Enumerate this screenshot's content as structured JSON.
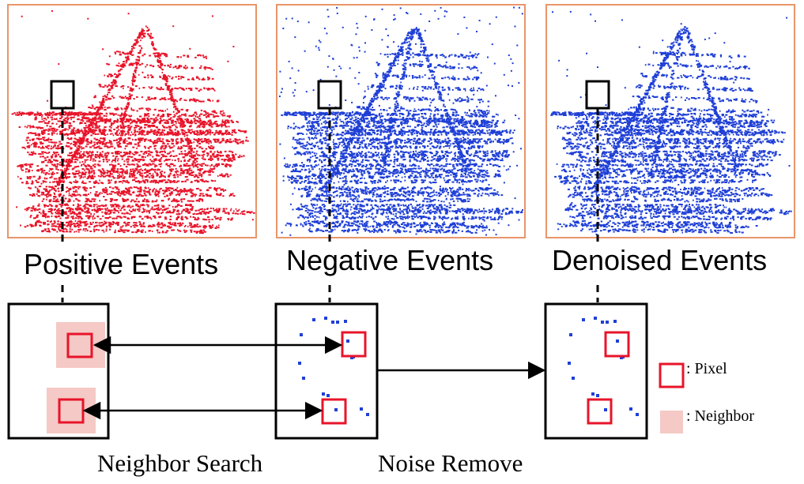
{
  "panels": {
    "positive": {
      "label": "Positive Events",
      "color": "#e8142a"
    },
    "negative": {
      "label": "Negative Events",
      "color": "#1f3fd6"
    },
    "denoised": {
      "label": "Denoised Events",
      "color": "#1f3fd6"
    }
  },
  "panel_border_color": "#e8956a",
  "pixel_box_color": "#e8142a",
  "neighbor_fill_color": "#f5c9c5",
  "steps": {
    "neighbor_search": "Neighbor Search",
    "noise_remove": "Noise Remove"
  },
  "legend": {
    "pixel": ": Pixel",
    "neighbor": ": Neighbor"
  }
}
